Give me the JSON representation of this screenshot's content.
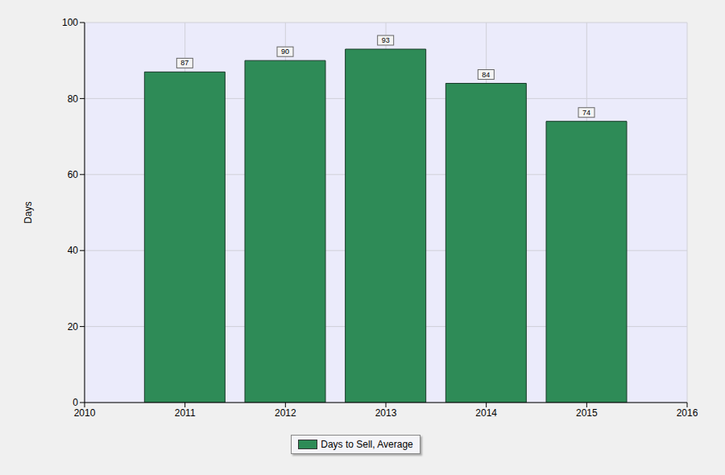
{
  "chart_data": {
    "type": "bar",
    "x": [
      2011,
      2012,
      2013,
      2014,
      2015
    ],
    "series": [
      {
        "name": "Days to Sell, Average",
        "color": "#2e8b57",
        "values": [
          87,
          90,
          93,
          84,
          74
        ]
      }
    ],
    "xlim": [
      2010,
      2016
    ],
    "xticks": [
      2010,
      2011,
      2012,
      2013,
      2014,
      2015,
      2016
    ],
    "ylim": [
      0,
      100
    ],
    "yticks": [
      0,
      20,
      40,
      60,
      80,
      100
    ],
    "ylabel": "Days",
    "grid": true,
    "legend": "bottom",
    "data_labels": true
  }
}
